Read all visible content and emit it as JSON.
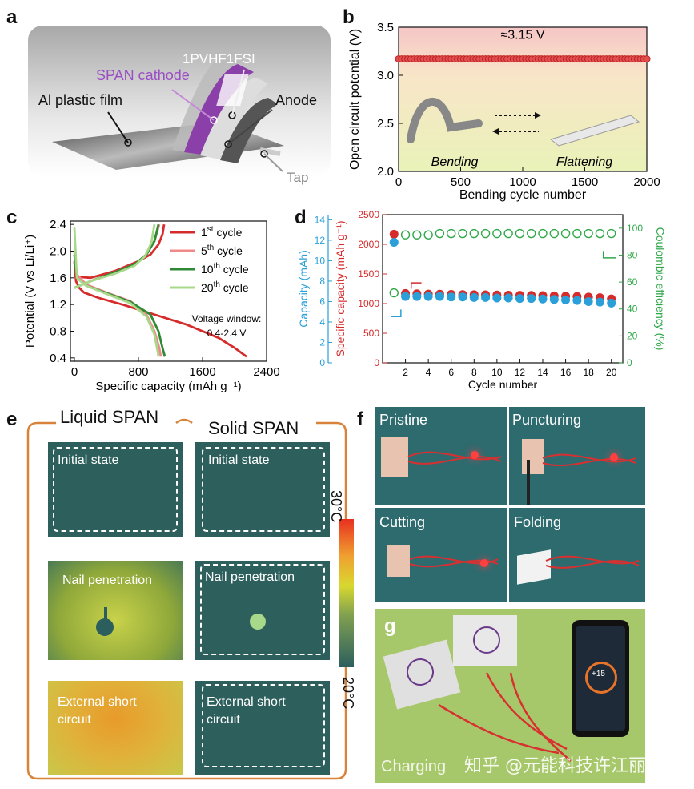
{
  "panels": {
    "a": {
      "letter": "a",
      "labels": {
        "pvhf": "1PVHF1FSI",
        "span": "SPAN cathode",
        "al": "Al plastic film",
        "anode": "Anode",
        "tap": "Tap"
      }
    },
    "b": {
      "letter": "b",
      "annotation": "≈3.15 V",
      "bending": "Bending",
      "flattening": "Flattening"
    },
    "c": {
      "letter": "c"
    },
    "d": {
      "letter": "d"
    },
    "e": {
      "letter": "e",
      "col1": "Liquid SPAN",
      "col2": "Solid SPAN",
      "initial": "Initial state",
      "nail": "Nail penetration",
      "short1": "External short",
      "short2": "circuit",
      "colorbar_top": "30°C",
      "colorbar_bottom": "20°C"
    },
    "f": {
      "letter": "f",
      "pristine": "Pristine",
      "puncturing": "Puncturing",
      "cutting": "Cutting",
      "folding": "Folding"
    },
    "g": {
      "letter": "g",
      "charging": "Charging",
      "watermark": "知乎 @元能科技许江丽",
      "phone_pct": "+15"
    }
  },
  "colors": {
    "red": "#d62b2b",
    "blue": "#2a9fd8",
    "green": "#2fa84a",
    "bgteal": "#2c5e5e"
  },
  "chart_data": [
    {
      "id": "b",
      "type": "scatter",
      "title": "",
      "xlabel": "Bending cycle number",
      "ylabel": "Open circuit potential (V)",
      "xlim": [
        0,
        2000
      ],
      "ylim": [
        2.0,
        3.5
      ],
      "xticks": [
        0,
        500,
        1000,
        1500,
        2000
      ],
      "yticks": [
        2.0,
        2.5,
        3.0,
        3.5
      ],
      "series": [
        {
          "name": "OCV",
          "value": 3.17,
          "x_start": 0,
          "x_end": 2000,
          "step": 25
        }
      ]
    },
    {
      "id": "c",
      "type": "line",
      "xlabel": "Specific capacity (mAh g⁻¹)",
      "ylabel": "Potential (V vs Li/Li⁺)",
      "xlim": [
        -50,
        2400
      ],
      "ylim": [
        0.35,
        2.45
      ],
      "xticks": [
        0,
        800,
        1600,
        2400
      ],
      "yticks": [
        0.4,
        0.8,
        1.2,
        1.6,
        2.0,
        2.4
      ],
      "annotation": [
        "Voltage window:",
        "0.4-2.4 V"
      ],
      "legend": [
        {
          "base": "1",
          "sup": "st",
          "rest": " cycle"
        },
        {
          "base": "5",
          "sup": "th",
          "rest": " cycle"
        },
        {
          "base": "10",
          "sup": "th",
          "rest": " cycle"
        },
        {
          "base": "20",
          "sup": "th",
          "rest": " cycle"
        }
      ],
      "series": [
        {
          "name": "1st cycle",
          "color": "#d62b2b",
          "discharge": [
            [
              0,
              1.85
            ],
            [
              20,
              1.55
            ],
            [
              60,
              1.45
            ],
            [
              120,
              1.38
            ],
            [
              300,
              1.3
            ],
            [
              600,
              1.2
            ],
            [
              1000,
              1.05
            ],
            [
              1400,
              0.9
            ],
            [
              1800,
              0.7
            ],
            [
              2000,
              0.55
            ],
            [
              2150,
              0.42
            ]
          ],
          "charge": [
            [
              0,
              1.62
            ],
            [
              200,
              1.6
            ],
            [
              500,
              1.7
            ],
            [
              800,
              1.85
            ],
            [
              950,
              1.95
            ],
            [
              1050,
              2.1
            ],
            [
              1100,
              2.25
            ],
            [
              1120,
              2.4
            ]
          ]
        },
        {
          "name": "5th cycle",
          "color": "#f08a8a",
          "discharge": [
            [
              0,
              2.0
            ],
            [
              30,
              1.65
            ],
            [
              150,
              1.5
            ],
            [
              400,
              1.38
            ],
            [
              700,
              1.25
            ],
            [
              900,
              1.05
            ],
            [
              1000,
              0.8
            ],
            [
              1060,
              0.55
            ],
            [
              1080,
              0.42
            ]
          ],
          "charge": [
            [
              0,
              1.45
            ],
            [
              200,
              1.55
            ],
            [
              500,
              1.68
            ],
            [
              750,
              1.8
            ],
            [
              900,
              1.95
            ],
            [
              1000,
              2.15
            ],
            [
              1060,
              2.4
            ]
          ]
        },
        {
          "name": "10th cycle",
          "color": "#2f8a35",
          "discharge": [
            [
              0,
              1.95
            ],
            [
              30,
              1.6
            ],
            [
              150,
              1.48
            ],
            [
              400,
              1.37
            ],
            [
              700,
              1.24
            ],
            [
              950,
              1.05
            ],
            [
              1050,
              0.8
            ],
            [
              1100,
              0.55
            ],
            [
              1130,
              0.42
            ]
          ],
          "charge": [
            [
              0,
              1.45
            ],
            [
              200,
              1.55
            ],
            [
              500,
              1.68
            ],
            [
              750,
              1.8
            ],
            [
              900,
              1.95
            ],
            [
              1000,
              2.15
            ],
            [
              1050,
              2.4
            ]
          ]
        },
        {
          "name": "20th cycle",
          "color": "#a8d88a",
          "discharge": [
            [
              0,
              2.35
            ],
            [
              30,
              1.6
            ],
            [
              150,
              1.48
            ],
            [
              400,
              1.36
            ],
            [
              700,
              1.22
            ],
            [
              900,
              1.02
            ],
            [
              1000,
              0.75
            ],
            [
              1040,
              0.5
            ],
            [
              1050,
              0.42
            ]
          ],
          "charge": [
            [
              0,
              1.45
            ],
            [
              200,
              1.55
            ],
            [
              500,
              1.66
            ],
            [
              750,
              1.78
            ],
            [
              880,
              1.92
            ],
            [
              960,
              2.12
            ],
            [
              1000,
              2.4
            ]
          ]
        }
      ]
    },
    {
      "id": "d",
      "type": "scatter",
      "xlabel": "Cycle number",
      "ylabel_left_outer": "Capacity (mAh)",
      "ylabel_left": "Specific capacity (mAh g⁻¹)",
      "ylabel_right": "Coulombic efficiency (%)",
      "xlim": [
        0,
        21
      ],
      "ylim": [
        0,
        2500
      ],
      "y2lim": [
        0,
        110
      ],
      "y3lim": [
        0,
        14.5
      ],
      "xticks": [
        2,
        4,
        6,
        8,
        10,
        12,
        14,
        16,
        18,
        20
      ],
      "yticks": [
        0,
        500,
        1000,
        1500,
        2000,
        2500
      ],
      "y2ticks": [
        0,
        20,
        40,
        60,
        80,
        100
      ],
      "y3ticks": [
        0,
        2,
        4,
        6,
        8,
        10,
        12,
        14
      ],
      "series": [
        {
          "name": "Specific capacity",
          "color": "#d62b2b",
          "axis": "left",
          "x": [
            1,
            2,
            3,
            4,
            5,
            6,
            7,
            8,
            9,
            10,
            11,
            12,
            13,
            14,
            15,
            16,
            17,
            18,
            19,
            20
          ],
          "y": [
            2170,
            1170,
            1165,
            1160,
            1158,
            1155,
            1152,
            1150,
            1148,
            1145,
            1142,
            1140,
            1138,
            1135,
            1130,
            1125,
            1120,
            1110,
            1100,
            1080
          ]
        },
        {
          "name": "Capacity",
          "color": "#2a9fd8",
          "axis": "left_outer",
          "x": [
            1,
            2,
            3,
            4,
            5,
            6,
            7,
            8,
            9,
            10,
            11,
            12,
            13,
            14,
            15,
            16,
            17,
            18,
            19,
            20
          ],
          "y": [
            11.8,
            6.5,
            6.5,
            6.5,
            6.5,
            6.45,
            6.45,
            6.4,
            6.4,
            6.35,
            6.35,
            6.3,
            6.3,
            6.25,
            6.2,
            6.15,
            6.1,
            6.0,
            5.95,
            5.85
          ]
        },
        {
          "name": "Coulombic efficiency",
          "color": "#2fa84a",
          "axis": "right",
          "x": [
            1,
            2,
            3,
            4,
            5,
            6,
            7,
            8,
            9,
            10,
            11,
            12,
            13,
            14,
            15,
            16,
            17,
            18,
            19,
            20
          ],
          "y": [
            52,
            95,
            95,
            95,
            96,
            96,
            96,
            96,
            96,
            96,
            96,
            96,
            96,
            96,
            96,
            96,
            96,
            96,
            96,
            96
          ],
          "first_filled_red": 96
        }
      ]
    }
  ]
}
